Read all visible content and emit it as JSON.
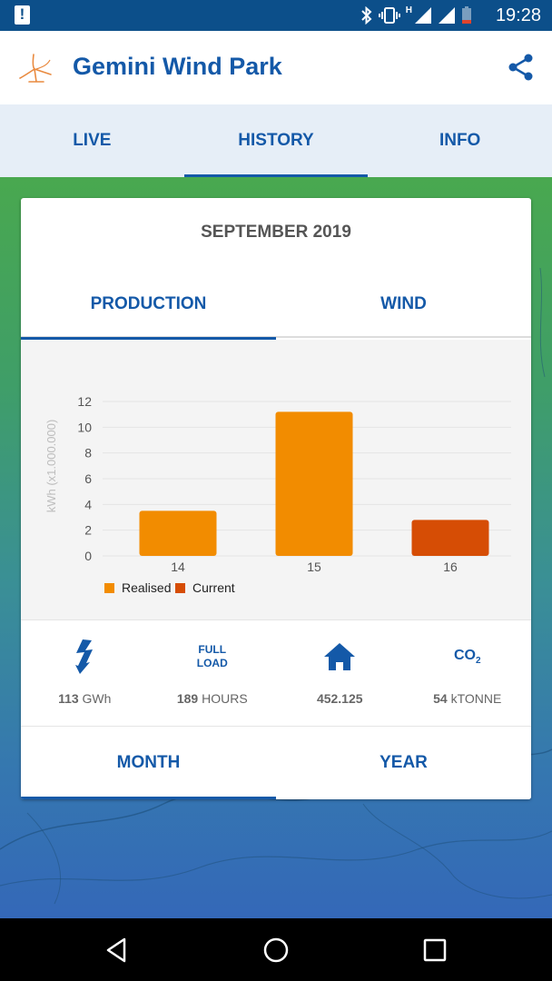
{
  "status_bar": {
    "time": "19:28",
    "network_label": "H"
  },
  "app": {
    "title": "Gemini Wind Park"
  },
  "main_tabs": [
    {
      "label": "LIVE",
      "active": false
    },
    {
      "label": "HISTORY",
      "active": true
    },
    {
      "label": "INFO",
      "active": false
    }
  ],
  "card": {
    "title": "SEPTEMBER 2019",
    "sub_tabs": [
      {
        "label": "PRODUCTION",
        "active": true
      },
      {
        "label": "WIND",
        "active": false
      }
    ],
    "stats": [
      {
        "icon": "lightning-icon",
        "value_bold": "113",
        "value_unit": " GWh"
      },
      {
        "icon": "full-load-icon",
        "icon_text_1": "FULL",
        "icon_text_2": "LOAD",
        "value_bold": "189",
        "value_unit": " HOURS"
      },
      {
        "icon": "house-icon",
        "value_bold": "452.125",
        "value_unit": ""
      },
      {
        "icon": "co2-icon",
        "icon_text": "CO",
        "icon_sub": "2",
        "value_bold": "54",
        "value_unit": " kTONNE"
      }
    ],
    "period_tabs": [
      {
        "label": "MONTH",
        "active": true
      },
      {
        "label": "YEAR",
        "active": false
      }
    ]
  },
  "chart_data": {
    "type": "bar",
    "categories": [
      "14",
      "15",
      "16"
    ],
    "values": [
      3.5,
      11.2,
      2.8
    ],
    "bar_series": [
      "Realised",
      "Realised",
      "Current"
    ],
    "ylabel": "kWh (x1.000.000)",
    "ylim": [
      0,
      12
    ],
    "yticks": [
      0,
      2,
      4,
      6,
      8,
      10,
      12
    ],
    "grid": true,
    "legend": [
      {
        "name": "Realised",
        "color": "#f28c00"
      },
      {
        "name": "Current",
        "color": "#d64d05"
      }
    ],
    "legend_position": "bottom-left"
  },
  "colors": {
    "primary": "#1459a8",
    "realised": "#f28c00",
    "current": "#d64d05"
  }
}
